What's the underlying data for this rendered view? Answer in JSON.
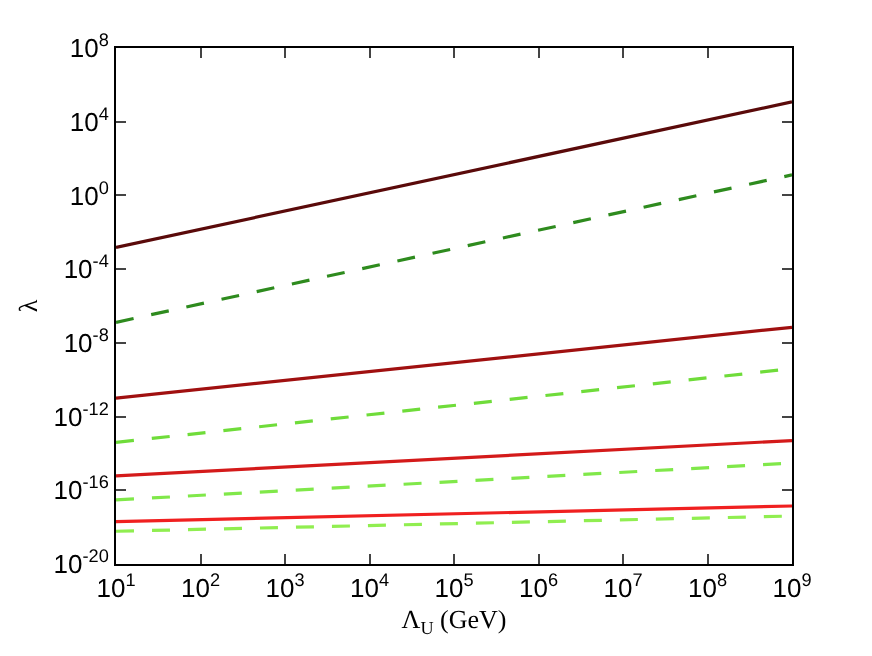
{
  "chart_data": {
    "type": "line",
    "xlabel": "Λ$_{U}$ (GeV)",
    "ylabel": "λ",
    "log": "xy",
    "grid": false,
    "marker": "none",
    "x": [
      10,
      1000000000
    ],
    "xlim": [
      10,
      1000000000
    ],
    "xticks": [
      {
        "value": 10,
        "label": "10$^{1}$"
      },
      {
        "value": 100,
        "label": "10$^{2}$"
      },
      {
        "value": 1000,
        "label": "10$^{3}$"
      },
      {
        "value": 10000,
        "label": "10$^{4}$"
      },
      {
        "value": 100000,
        "label": "10$^{5}$"
      },
      {
        "value": 1000000,
        "label": "10$^{6}$"
      },
      {
        "value": 10000000,
        "label": "10$^{7}$"
      },
      {
        "value": 100000000,
        "label": "10$^{8}$"
      },
      {
        "value": 1000000000,
        "label": "10$^{9}$"
      }
    ],
    "ylim": [
      1e-20,
      100000000.0
    ],
    "yticks": [
      {
        "value": 1e-20,
        "label": "10$^{-20}$"
      },
      {
        "value": 1e-16,
        "label": "10$^{-16}$"
      },
      {
        "value": 1e-12,
        "label": "10$^{-12}$"
      },
      {
        "value": 1e-08,
        "label": "10$^{-8}$"
      },
      {
        "value": 0.0001,
        "label": "10$^{-4}$"
      },
      {
        "value": 1,
        "label": "10$^{0}$"
      },
      {
        "value": 10000,
        "label": "10$^{4}$"
      },
      {
        "value": 100000000.0,
        "label": "10$^{8}$"
      }
    ],
    "series": [
      {
        "color": "#5a0a0a",
        "line_style": "solid",
        "values": [
          0.0015,
          120000
        ]
      },
      {
        "color": "#2e8b1e",
        "line_style": "dashed",
        "values": [
          1.3e-07,
          13
        ]
      },
      {
        "color": "#a01010",
        "line_style": "solid",
        "values": [
          1e-11,
          7e-08
        ]
      },
      {
        "color": "#6fdc3a",
        "line_style": "dashed",
        "values": [
          4e-14,
          4e-10
        ]
      },
      {
        "color": "#d41a1a",
        "line_style": "solid",
        "values": [
          6e-16,
          5e-14
        ]
      },
      {
        "color": "#80e84a",
        "line_style": "dashed",
        "values": [
          3e-17,
          3e-15
        ]
      },
      {
        "color": "#f02020",
        "line_style": "solid",
        "values": [
          2e-18,
          1.4e-17
        ]
      },
      {
        "color": "#90ee50",
        "line_style": "dashed",
        "values": [
          6e-19,
          4e-18
        ]
      }
    ]
  }
}
